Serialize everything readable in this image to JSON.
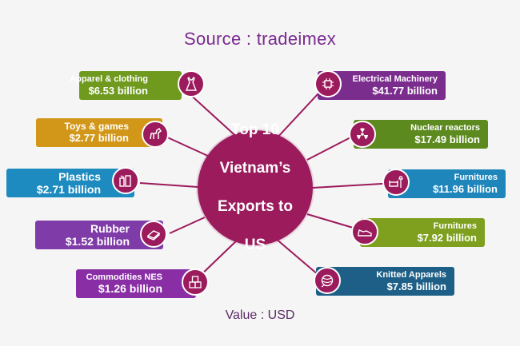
{
  "source": "Source : tradeimex",
  "hub": {
    "line1": "Top 10",
    "line2": "Vietnam’s",
    "line3": "Exports to",
    "line4": "US"
  },
  "footer": "Value : USD",
  "left_items": [
    {
      "label": "Apparel & clothing",
      "value": "$6.53 billion",
      "color": "#6f9a1e",
      "icon": "dress-icon"
    },
    {
      "label": "Toys & games",
      "value": "$2.77 billion",
      "color": "#d29718",
      "icon": "toy-horse-icon"
    },
    {
      "label": "Plastics",
      "value": "$2.71 billion",
      "color": "#1e8bc0",
      "icon": "plastics-icon"
    },
    {
      "label": "Rubber",
      "value": "$1.52 billion",
      "color": "#7f3ca8",
      "icon": "rubber-block-icon"
    },
    {
      "label": "Commodities NES",
      "value": "$1.26 billion",
      "color": "#8a2ea6",
      "icon": "boxes-icon"
    }
  ],
  "right_items": [
    {
      "label": "Electrical Machinery",
      "value": "$41.77 billion",
      "color": "#7b2d8e",
      "icon": "circuit-chip-icon"
    },
    {
      "label": "Nuclear reactors",
      "value": "$17.49 billion",
      "color": "#5c8a1f",
      "icon": "radiation-icon"
    },
    {
      "label": "Furnitures",
      "value": "$11.96 billion",
      "color": "#1f86bb",
      "icon": "sofa-lamp-icon"
    },
    {
      "label": "Furnitures",
      "value": "$7.92 billion",
      "color": "#7ea01e",
      "icon": "sneaker-icon"
    },
    {
      "label": "Knitted Apparels",
      "value": "$7.85 billion",
      "color": "#1d5f86",
      "icon": "yarn-icon"
    }
  ]
}
